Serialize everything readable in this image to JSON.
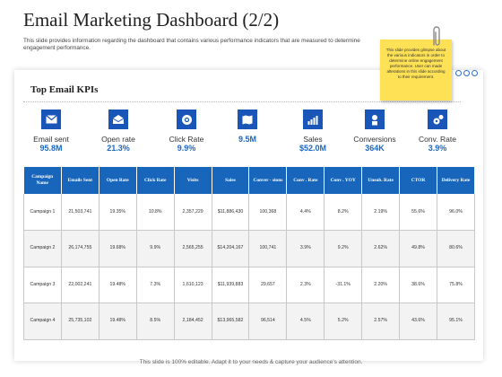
{
  "title": "Email Marketing Dashboard (2/2)",
  "description": "This slide provides information regarding the dashboard that contains various performance indicators that are measured to determine engagement performance.",
  "note": "This slide provides glimpse about the various indicators in order to determine online engagement performance. User can made alterations in this slide according to their requirement.",
  "kpi_heading": "Top Email KPIs",
  "kpis": [
    {
      "label": "Email sent",
      "value": "95.8M",
      "icon": "envelope-icon"
    },
    {
      "label": "Open rate",
      "value": "21.3%",
      "icon": "open-email-icon"
    },
    {
      "label": "Click Rate",
      "value": "9.9%",
      "icon": "at-sign-icon"
    },
    {
      "label": "",
      "value": "9.5M",
      "icon": "map-icon"
    },
    {
      "label": "Sales",
      "value": "$52.0M",
      "icon": "bar-chart-icon"
    },
    {
      "label": "Conversions",
      "value": "364K",
      "icon": "conversion-icon"
    },
    {
      "label": "Conv. Rate",
      "value": "3.9%",
      "icon": "gears-icon"
    }
  ],
  "table": {
    "headers": [
      "Campaign Name",
      "Emails Sent",
      "Open Rate",
      "Click Rate",
      "Visits",
      "Sales",
      "Conver - sions",
      "Conv . Rate",
      "Conv . YOY",
      "Unsub. Rate",
      "CTOR",
      "Delivery Rate"
    ],
    "rows": [
      [
        "Campaign 1",
        "21,503,741",
        "19.35%",
        "10.8%",
        "2,357,229",
        "$11,886,430",
        "100,368",
        "4.4%",
        "8.2%",
        "2.19%",
        "55.6%",
        "96.0%"
      ],
      [
        "Campaign 2",
        "26,174,755",
        "19.68%",
        "9.9%",
        "2,565,255",
        "$14,204,167",
        "100,741",
        "3.9%",
        "9.2%",
        "2.62%",
        "49.8%",
        "80.6%"
      ],
      [
        "Campaign 3",
        "22,002,241",
        "19.48%",
        "7.3%",
        "1,610,123",
        "$11,939,883",
        "29,657",
        "2.3%",
        "-31.1%",
        "2.20%",
        "38.6%",
        "75.8%"
      ],
      [
        "Campaign 4",
        "25,735,102",
        "19.48%",
        "8.5%",
        "2,184,452",
        "$13,965,582",
        "96,514",
        "4.5%",
        "5.2%",
        "2.57%",
        "43.6%",
        "95.1%"
      ]
    ]
  },
  "footer": "This slide is 100% editable. Adapt it to your needs & capture your audience's attention.",
  "colors": {
    "accent": "#1866bc",
    "value": "#1a67c2",
    "note": "#ffe156"
  }
}
